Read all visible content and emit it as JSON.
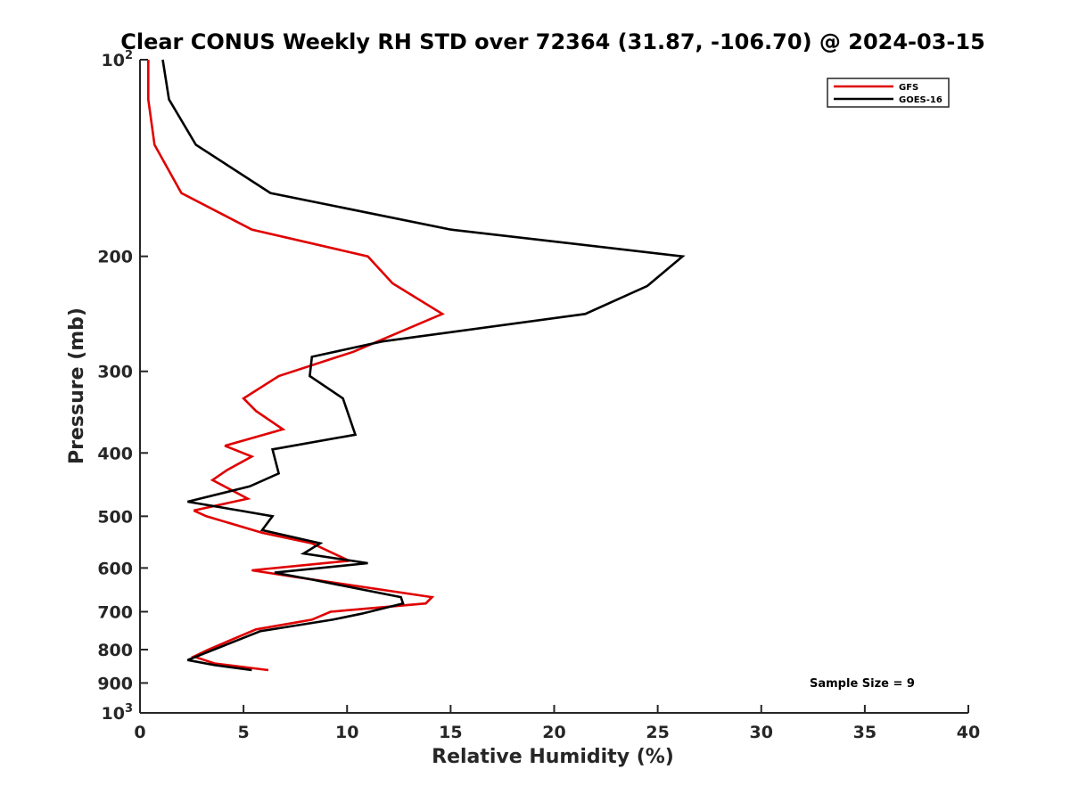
{
  "chart_data": {
    "type": "line",
    "title": "Clear CONUS Weekly RH STD over 72364 (31.87, -106.70) @ 2024-03-15",
    "xlabel": "Relative Humidity (%)",
    "ylabel": "Pressure (mb)",
    "xlim": [
      0,
      40
    ],
    "ylim": [
      100,
      1000
    ],
    "y_scale": "log",
    "y_reversed": true,
    "grid": false,
    "legend_position": "top-right",
    "x_ticks": [
      0,
      5,
      10,
      15,
      20,
      25,
      30,
      35,
      40
    ],
    "y_ticks": [
      {
        "value": 100,
        "label": "10",
        "exp": "2"
      },
      {
        "value": 200,
        "label": "200",
        "exp": ""
      },
      {
        "value": 300,
        "label": "300",
        "exp": ""
      },
      {
        "value": 400,
        "label": "400",
        "exp": ""
      },
      {
        "value": 500,
        "label": "500",
        "exp": ""
      },
      {
        "value": 600,
        "label": "600",
        "exp": ""
      },
      {
        "value": 700,
        "label": "700",
        "exp": ""
      },
      {
        "value": 800,
        "label": "800",
        "exp": ""
      },
      {
        "value": 900,
        "label": "900",
        "exp": ""
      },
      {
        "value": 1000,
        "label": "10",
        "exp": "3"
      }
    ],
    "annotation": "Sample Size = 9",
    "series": [
      {
        "name": "GFS",
        "color": "#e00000",
        "points": [
          [
            0.4,
            100
          ],
          [
            0.4,
            115
          ],
          [
            0.7,
            135
          ],
          [
            2.0,
            160
          ],
          [
            5.4,
            182
          ],
          [
            11.0,
            200
          ],
          [
            12.2,
            220
          ],
          [
            14.6,
            245
          ],
          [
            10.3,
            280
          ],
          [
            6.7,
            305
          ],
          [
            5.0,
            330
          ],
          [
            5.6,
            345
          ],
          [
            6.9,
            368
          ],
          [
            4.1,
            390
          ],
          [
            5.4,
            405
          ],
          [
            4.2,
            425
          ],
          [
            3.5,
            440
          ],
          [
            5.2,
            470
          ],
          [
            2.6,
            490
          ],
          [
            3.2,
            500
          ],
          [
            5.9,
            530
          ],
          [
            8.3,
            550
          ],
          [
            10.1,
            585
          ],
          [
            5.4,
            605
          ],
          [
            7.6,
            620
          ],
          [
            14.1,
            665
          ],
          [
            13.8,
            680
          ],
          [
            9.2,
            700
          ],
          [
            8.3,
            720
          ],
          [
            5.6,
            745
          ],
          [
            3.3,
            800
          ],
          [
            2.6,
            820
          ],
          [
            3.6,
            840
          ],
          [
            6.2,
            860
          ]
        ]
      },
      {
        "name": "GOES-16",
        "color": "#000000",
        "points": [
          [
            1.1,
            100
          ],
          [
            1.4,
            115
          ],
          [
            2.7,
            135
          ],
          [
            6.3,
            160
          ],
          [
            15.0,
            182
          ],
          [
            26.2,
            200
          ],
          [
            24.5,
            222
          ],
          [
            21.5,
            245
          ],
          [
            11.7,
            270
          ],
          [
            8.3,
            285
          ],
          [
            8.2,
            305
          ],
          [
            9.8,
            330
          ],
          [
            10.4,
            375
          ],
          [
            6.4,
            395
          ],
          [
            6.7,
            430
          ],
          [
            5.3,
            450
          ],
          [
            2.3,
            475
          ],
          [
            4.8,
            490
          ],
          [
            6.4,
            500
          ],
          [
            5.9,
            525
          ],
          [
            8.7,
            550
          ],
          [
            7.9,
            570
          ],
          [
            11.0,
            590
          ],
          [
            6.5,
            610
          ],
          [
            8.3,
            625
          ],
          [
            12.6,
            665
          ],
          [
            12.7,
            680
          ],
          [
            10.7,
            705
          ],
          [
            9.3,
            720
          ],
          [
            5.8,
            750
          ],
          [
            4.0,
            790
          ],
          [
            2.3,
            830
          ],
          [
            3.6,
            845
          ],
          [
            5.4,
            860
          ]
        ]
      }
    ]
  }
}
